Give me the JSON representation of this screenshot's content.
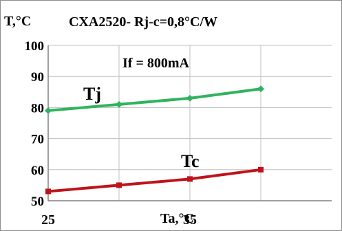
{
  "chart_data": {
    "type": "line",
    "title": "CXA2520- Rj-c=0,8°C/W",
    "ylabel": "T,°C",
    "xlabel": "Ta,°C",
    "annotation": "If = 800mA",
    "xlim": [
      25,
      45
    ],
    "ylim": [
      50,
      100
    ],
    "x_ticks": [
      25,
      35
    ],
    "y_ticks": [
      50,
      60,
      70,
      80,
      90,
      100
    ],
    "grid": true,
    "legend": "none",
    "series": [
      {
        "name": "Tj",
        "color": "#2fb35e",
        "x": [
          25,
          30,
          35,
          40
        ],
        "y": [
          79,
          81,
          83,
          86
        ]
      },
      {
        "name": "Tc",
        "color": "#c0121b",
        "x": [
          25,
          30,
          35,
          40
        ],
        "y": [
          53,
          55,
          57,
          60
        ]
      }
    ]
  }
}
